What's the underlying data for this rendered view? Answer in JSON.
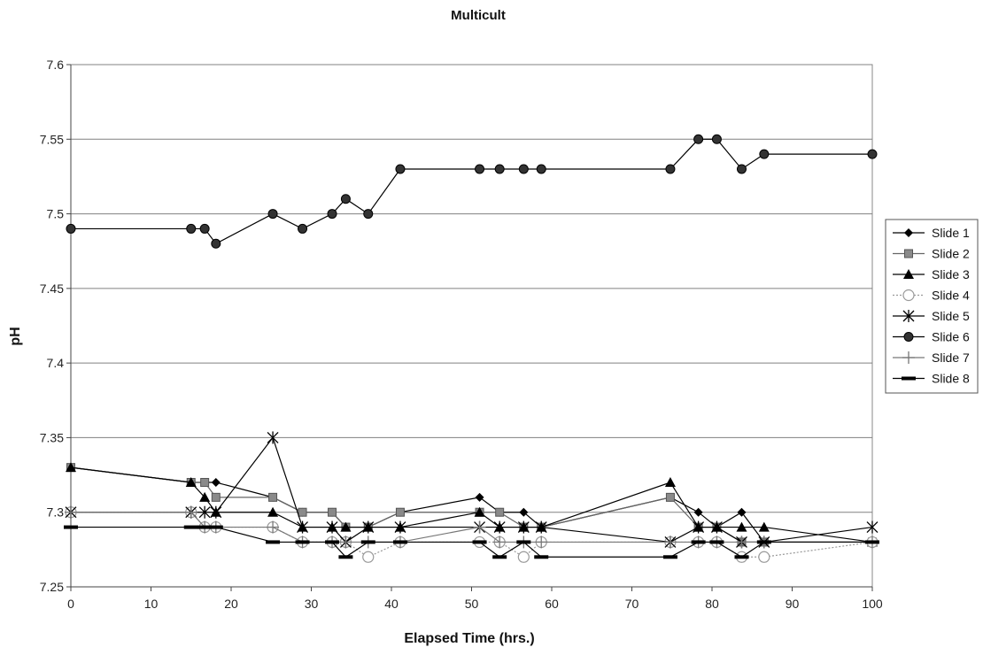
{
  "chart_data": {
    "type": "line",
    "title": "Multicult",
    "xlabel": "Elapsed Time (hrs.)",
    "ylabel": "pH",
    "xlim": [
      0,
      100
    ],
    "ylim": [
      7.25,
      7.6
    ],
    "xticks": [
      "0",
      "10",
      "20",
      "30",
      "40",
      "50",
      "60",
      "70",
      "80",
      "90",
      "100"
    ],
    "yticks": [
      "7.25",
      "7.3",
      "7.35",
      "7.4",
      "7.45",
      "7.5",
      "7.55",
      "7.6"
    ],
    "grid": "horizontal",
    "legend_position": "right",
    "series": [
      {
        "name": "Slide 1",
        "marker": "diamond",
        "color": "#000000",
        "x": [
          0,
          15,
          16.7,
          18.1,
          25.2,
          28.9,
          32.6,
          34.3,
          37.1,
          41.1,
          51,
          53.5,
          56.5,
          58.7,
          74.8,
          78.3,
          80.6,
          83.7,
          86.5,
          100
        ],
        "y": [
          7.33,
          7.32,
          7.32,
          7.32,
          7.31,
          7.3,
          7.3,
          7.29,
          7.29,
          7.3,
          7.31,
          7.3,
          7.3,
          7.29,
          7.31,
          7.3,
          7.29,
          7.3,
          7.28,
          7.28
        ]
      },
      {
        "name": "Slide 2",
        "marker": "square",
        "color": "#666666",
        "x": [
          0,
          15,
          16.7,
          18.1,
          25.2,
          28.9,
          32.6,
          34.3,
          37.1,
          41.1,
          51,
          53.5,
          56.5,
          58.7,
          74.8,
          78.3,
          80.6,
          83.7,
          86.5,
          100
        ],
        "y": [
          7.33,
          7.32,
          7.32,
          7.31,
          7.31,
          7.3,
          7.3,
          7.29,
          7.29,
          7.3,
          7.3,
          7.3,
          7.29,
          7.29,
          7.31,
          7.29,
          7.29,
          7.28,
          7.28,
          7.28
        ]
      },
      {
        "name": "Slide 3",
        "marker": "triangle",
        "color": "#000000",
        "x": [
          0,
          15,
          16.7,
          18.1,
          25.2,
          28.9,
          32.6,
          34.3,
          37.1,
          41.1,
          51,
          53.5,
          56.5,
          58.7,
          74.8,
          78.3,
          80.6,
          83.7,
          86.5,
          100
        ],
        "y": [
          7.33,
          7.32,
          7.31,
          7.3,
          7.3,
          7.29,
          7.29,
          7.29,
          7.29,
          7.29,
          7.3,
          7.29,
          7.29,
          7.29,
          7.32,
          7.29,
          7.29,
          7.29,
          7.29,
          7.28
        ]
      },
      {
        "name": "Slide 4",
        "marker": "open-circle",
        "color": "#999999",
        "x": [
          0,
          15,
          16.7,
          18.1,
          25.2,
          28.9,
          32.6,
          34.3,
          37.1,
          41.1,
          51,
          53.5,
          56.5,
          58.7,
          74.8,
          78.3,
          80.6,
          83.7,
          86.5,
          100
        ],
        "y": [
          7.3,
          7.3,
          7.29,
          7.29,
          7.29,
          7.28,
          7.28,
          7.28,
          7.27,
          7.28,
          7.28,
          7.28,
          7.27,
          7.28,
          7.28,
          7.28,
          7.28,
          7.27,
          7.27,
          7.28
        ]
      },
      {
        "name": "Slide 5",
        "marker": "star",
        "color": "#000000",
        "x": [
          0,
          15,
          16.7,
          18.1,
          25.2,
          28.9,
          32.6,
          34.3,
          37.1,
          41.1,
          51,
          53.5,
          56.5,
          58.7,
          74.8,
          78.3,
          80.6,
          83.7,
          86.5,
          100
        ],
        "y": [
          7.3,
          7.3,
          7.3,
          7.3,
          7.35,
          7.29,
          7.29,
          7.28,
          7.29,
          7.29,
          7.29,
          7.29,
          7.29,
          7.29,
          7.28,
          7.29,
          7.29,
          7.28,
          7.28,
          7.29
        ]
      },
      {
        "name": "Slide 6",
        "marker": "circle",
        "color": "#000000",
        "x": [
          0,
          15,
          16.7,
          18.1,
          25.2,
          28.9,
          32.6,
          34.3,
          37.1,
          41.1,
          51,
          53.5,
          56.5,
          58.7,
          74.8,
          78.3,
          80.6,
          83.7,
          86.5,
          100
        ],
        "y": [
          7.49,
          7.49,
          7.49,
          7.48,
          7.5,
          7.49,
          7.5,
          7.51,
          7.5,
          7.53,
          7.53,
          7.53,
          7.53,
          7.53,
          7.53,
          7.55,
          7.55,
          7.53,
          7.54,
          7.54
        ]
      },
      {
        "name": "Slide 7",
        "marker": "plus",
        "color": "#777777",
        "x": [
          0,
          15,
          16.7,
          18.1,
          25.2,
          28.9,
          32.6,
          34.3,
          37.1,
          41.1,
          51,
          53.5,
          56.5,
          58.7,
          74.8,
          78.3,
          80.6,
          83.7,
          86.5,
          100
        ],
        "y": [
          7.3,
          7.3,
          7.29,
          7.29,
          7.29,
          7.28,
          7.28,
          7.28,
          7.28,
          7.28,
          7.29,
          7.28,
          7.28,
          7.28,
          7.28,
          7.28,
          7.28,
          7.28,
          7.28,
          7.28
        ]
      },
      {
        "name": "Slide 8",
        "marker": "dash",
        "color": "#000000",
        "x": [
          0,
          15,
          16.7,
          18.1,
          25.2,
          28.9,
          32.6,
          34.3,
          37.1,
          41.1,
          51,
          53.5,
          56.5,
          58.7,
          74.8,
          78.3,
          80.6,
          83.7,
          86.5,
          100
        ],
        "y": [
          7.29,
          7.29,
          7.29,
          7.29,
          7.28,
          7.28,
          7.28,
          7.27,
          7.28,
          7.28,
          7.28,
          7.27,
          7.28,
          7.27,
          7.27,
          7.28,
          7.28,
          7.27,
          7.28,
          7.28
        ]
      }
    ]
  }
}
